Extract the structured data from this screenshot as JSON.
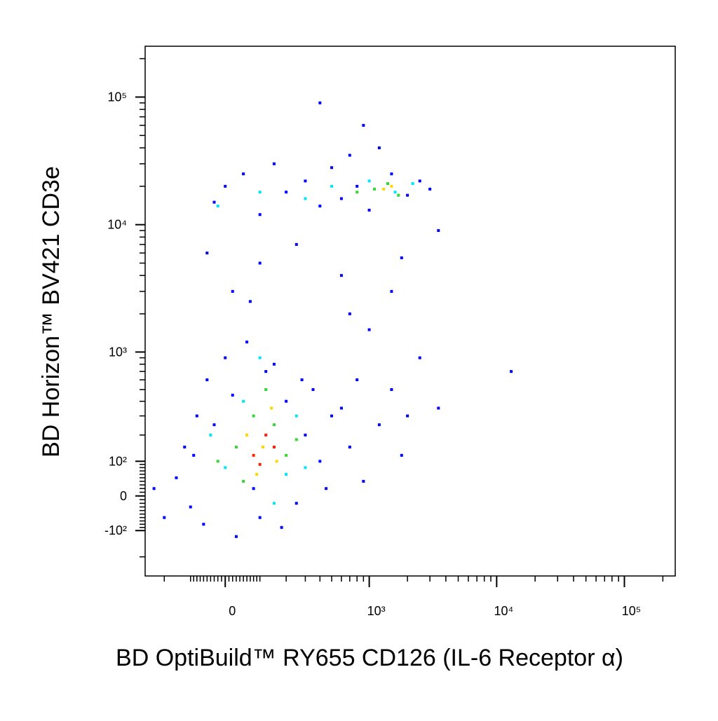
{
  "chart_data": {
    "type": "scatter",
    "x_label": "BD OptiBuild™ RY655 CD126 (IL-6 Receptor α)",
    "y_label": "BD Horizon™ BV421 CD3e",
    "xscale": "biexponential",
    "yscale": "biexponential",
    "xlim": [
      -300,
      250000
    ],
    "ylim": [
      -300,
      250000
    ],
    "xticks": [
      0,
      {
        "value": 1000,
        "label": "10³"
      },
      {
        "value": 10000,
        "label": "10⁴"
      },
      {
        "value": 100000,
        "label": "10⁵"
      }
    ],
    "yticks": [
      {
        "value": -100,
        "label": "-10²"
      },
      0,
      {
        "value": 100,
        "label": "10²"
      },
      {
        "value": 1000,
        "label": "10³"
      },
      {
        "value": 10000,
        "label": "10⁴"
      },
      {
        "value": 100000,
        "label": "10⁵"
      }
    ],
    "xminorticks": [
      -200,
      -100,
      -90,
      -80,
      -70,
      -60,
      -50,
      -40,
      -30,
      -20,
      -10,
      10,
      20,
      30,
      40,
      50,
      60,
      70,
      80,
      90,
      100,
      200,
      300,
      400,
      500,
      600,
      700,
      800,
      900,
      2000,
      3000,
      4000,
      5000,
      6000,
      7000,
      8000,
      9000,
      20000,
      30000,
      40000,
      50000,
      60000,
      70000,
      80000,
      90000,
      200000
    ],
    "yminorticks": [
      -200,
      -90,
      -80,
      -70,
      -60,
      -50,
      -40,
      -30,
      -20,
      -10,
      10,
      20,
      30,
      40,
      50,
      60,
      70,
      80,
      90,
      200,
      300,
      400,
      500,
      600,
      700,
      800,
      900,
      2000,
      3000,
      4000,
      5000,
      6000,
      7000,
      8000,
      9000,
      20000,
      30000,
      40000,
      50000,
      60000,
      70000,
      80000,
      90000,
      200000
    ],
    "series": [
      {
        "color": "#0000ff",
        "x": [
          -150,
          -120,
          -100,
          -80,
          -50,
          -60,
          0,
          30,
          60,
          100,
          150,
          200,
          250,
          300,
          350,
          400,
          450,
          500,
          -30,
          20,
          120,
          180,
          280,
          80,
          -90,
          600,
          700,
          800,
          900,
          1200,
          1500,
          2000,
          2500,
          1800,
          3500,
          1000,
          700,
          13000,
          -200,
          -250,
          -30,
          0,
          50,
          100,
          150,
          200,
          300,
          400,
          500,
          600,
          700,
          800,
          1000,
          1500,
          2000,
          2500,
          3000,
          3500,
          1200,
          400,
          900,
          -50,
          100,
          250,
          600,
          1800,
          20,
          70,
          1500
        ],
        "y": [
          50,
          150,
          -30,
          300,
          600,
          -80,
          900,
          -120,
          1200,
          -60,
          800,
          400,
          -20,
          200,
          500,
          100,
          20,
          300,
          250,
          450,
          700,
          -90,
          600,
          20,
          120,
          350,
          150,
          600,
          40,
          250,
          500,
          300,
          900,
          120,
          350,
          1500,
          2000,
          700,
          -60,
          20,
          15000,
          20000,
          25000,
          12000,
          30000,
          18000,
          22000,
          14000,
          28000,
          16000,
          35000,
          20000,
          13000,
          25000,
          17000,
          22000,
          19000,
          9000,
          40000,
          90000,
          60000,
          6000,
          5000,
          7000,
          4000,
          5500,
          3000,
          2500,
          3000
        ]
      },
      {
        "color": "#00e5ff",
        "x": [
          0,
          50,
          150,
          250,
          200,
          -40,
          100,
          300,
          100,
          500,
          1000,
          1600,
          2200,
          300,
          -20
        ],
        "y": [
          80,
          400,
          -20,
          300,
          60,
          200,
          900,
          80,
          18000,
          20000,
          22000,
          18000,
          21000,
          16000,
          14000
        ]
      },
      {
        "color": "#33d633",
        "x": [
          30,
          80,
          150,
          200,
          50,
          120,
          250,
          -20,
          1100,
          1400,
          1700,
          800
        ],
        "y": [
          150,
          300,
          250,
          120,
          40,
          500,
          180,
          100,
          19000,
          21000,
          17000,
          18000
        ]
      },
      {
        "color": "#ffd700",
        "x": [
          60,
          110,
          160,
          90,
          140,
          1300,
          1500
        ],
        "y": [
          200,
          150,
          100,
          60,
          350,
          19000,
          20000
        ]
      },
      {
        "color": "#ff2000",
        "x": [
          80,
          120,
          100,
          150
        ],
        "y": [
          120,
          200,
          90,
          150
        ]
      }
    ]
  }
}
